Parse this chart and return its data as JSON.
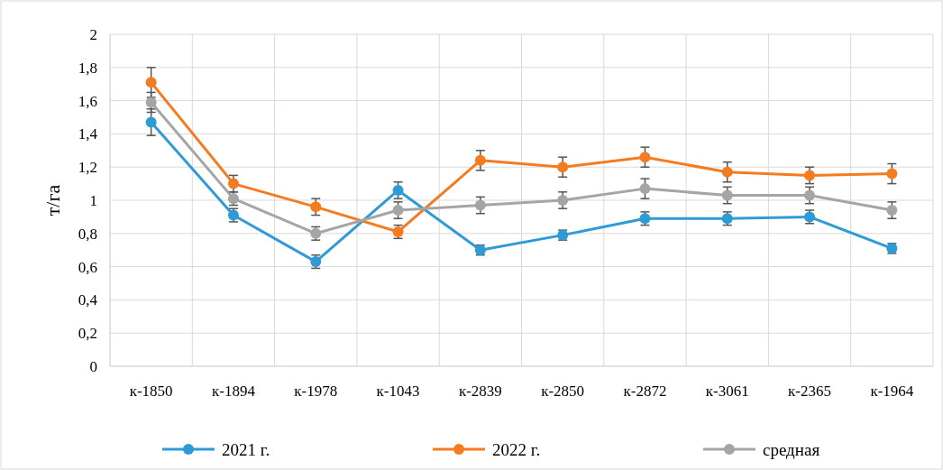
{
  "chart_data": {
    "type": "line",
    "ylabel": "т/га",
    "categories": [
      "к-1850",
      "к-1894",
      "к-1978",
      "к-1043",
      "к-2839",
      "к-2850",
      "к-2872",
      "к-3061",
      "к-2365",
      "к-1964"
    ],
    "series": [
      {
        "name": "2021 г.",
        "color": "#2e9ad6",
        "values": [
          1.47,
          0.91,
          0.63,
          1.06,
          0.7,
          0.79,
          0.89,
          0.89,
          0.9,
          0.71
        ],
        "errors": [
          0.08,
          0.04,
          0.04,
          0.05,
          0.03,
          0.03,
          0.04,
          0.04,
          0.04,
          0.03
        ]
      },
      {
        "name": "2022 г.",
        "color": "#f47b20",
        "values": [
          1.71,
          1.1,
          0.96,
          0.81,
          1.24,
          1.2,
          1.26,
          1.17,
          1.15,
          1.16
        ],
        "errors": [
          0.09,
          0.05,
          0.05,
          0.04,
          0.06,
          0.06,
          0.06,
          0.06,
          0.05,
          0.06
        ]
      },
      {
        "name": "средная",
        "color": "#a5a5a5",
        "values": [
          1.59,
          1.01,
          0.8,
          0.94,
          0.97,
          1.0,
          1.07,
          1.03,
          1.03,
          0.94
        ],
        "errors": [
          0.06,
          0.04,
          0.04,
          0.05,
          0.05,
          0.05,
          0.06,
          0.05,
          0.05,
          0.05
        ]
      }
    ],
    "ylim": [
      0,
      2
    ],
    "yticks": [
      {
        "value": 0,
        "label": "0"
      },
      {
        "value": 0.2,
        "label": "0,2"
      },
      {
        "value": 0.4,
        "label": "0,4"
      },
      {
        "value": 0.6,
        "label": "0,6"
      },
      {
        "value": 0.8,
        "label": "0,8"
      },
      {
        "value": 1,
        "label": "1"
      },
      {
        "value": 1.2,
        "label": "1,2"
      },
      {
        "value": 1.4,
        "label": "1,4"
      },
      {
        "value": 1.6,
        "label": "1,6"
      },
      {
        "value": 1.8,
        "label": "1,8"
      },
      {
        "value": 2,
        "label": "2"
      }
    ],
    "grid": true,
    "legend": "bottom",
    "marker": "circle",
    "line_style": "solid"
  }
}
